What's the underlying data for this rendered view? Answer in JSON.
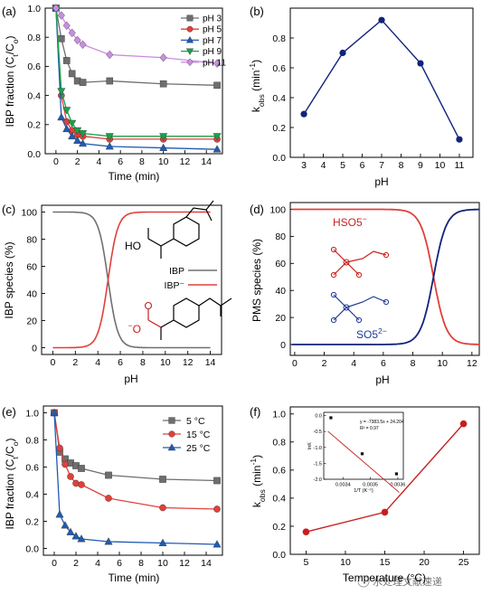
{
  "chart_data": [
    {
      "id": "a",
      "panel_label": "(a)",
      "type": "line",
      "xlabel": "Time (min)",
      "ylabel": "IBP fraction (C_t/C_o)",
      "xlim": [
        -1,
        15.5
      ],
      "ylim": [
        0,
        1.0
      ],
      "xticks": [
        0,
        2,
        4,
        6,
        8,
        10,
        12,
        14
      ],
      "yticks": [
        0.0,
        0.2,
        0.4,
        0.6,
        0.8,
        1.0
      ],
      "legend": "top-right",
      "x": [
        0,
        0.5,
        1,
        1.5,
        2,
        2.5,
        5,
        10,
        15
      ],
      "series": [
        {
          "name": "pH 3",
          "marker": "square",
          "color": "#6e6e6e",
          "values": [
            1.0,
            0.79,
            0.64,
            0.55,
            0.5,
            0.49,
            0.5,
            0.48,
            0.47
          ]
        },
        {
          "name": "pH 5",
          "marker": "circle",
          "color": "#e0403a",
          "values": [
            1.0,
            0.4,
            0.22,
            0.16,
            0.13,
            0.12,
            0.1,
            0.1,
            0.1
          ]
        },
        {
          "name": "pH 7",
          "marker": "triangle",
          "color": "#1f5bb3",
          "values": [
            1.0,
            0.25,
            0.17,
            0.12,
            0.09,
            0.07,
            0.05,
            0.04,
            0.03
          ]
        },
        {
          "name": "pH 9",
          "marker": "triangle-down",
          "color": "#16a34a",
          "values": [
            1.0,
            0.43,
            0.3,
            0.21,
            0.16,
            0.14,
            0.12,
            0.12,
            0.12
          ]
        },
        {
          "name": "pH 11",
          "marker": "diamond",
          "color": "#c98ee0",
          "values": [
            1.0,
            0.95,
            0.88,
            0.83,
            0.78,
            0.75,
            0.68,
            0.66,
            0.62
          ]
        }
      ]
    },
    {
      "id": "b",
      "panel_label": "(b)",
      "type": "line",
      "xlabel": "pH",
      "ylabel": "k_obs (min⁻¹)",
      "xlim": [
        2.3,
        11.7
      ],
      "ylim": [
        0,
        1.0
      ],
      "xticks": [
        3,
        4,
        5,
        6,
        7,
        8,
        9,
        10,
        11
      ],
      "yticks": [
        0.0,
        0.2,
        0.4,
        0.6,
        0.8
      ],
      "series": [
        {
          "color": "#12237a",
          "x": [
            3,
            5,
            7,
            9,
            11
          ],
          "values": [
            0.29,
            0.7,
            0.92,
            0.63,
            0.12
          ]
        }
      ]
    },
    {
      "id": "c",
      "panel_label": "(c)",
      "type": "line",
      "xlabel": "pH",
      "ylabel": "IBP species (%)",
      "xlim": [
        -1,
        15
      ],
      "ylim": [
        -5,
        105
      ],
      "xticks": [
        0,
        2,
        4,
        6,
        8,
        10,
        12,
        14
      ],
      "yticks": [
        0,
        20,
        40,
        60,
        80,
        100
      ],
      "pKa": 4.91,
      "legend": "center-right",
      "series": [
        {
          "name": "IBP",
          "color": "#707070",
          "form": "acid"
        },
        {
          "name": "IBP⁻",
          "color": "#e0403a",
          "form": "base"
        }
      ],
      "annotations": {
        "acid_group": "HO",
        "base_group": "O",
        "base_charge": "−"
      }
    },
    {
      "id": "d",
      "panel_label": "(d)",
      "type": "line",
      "xlabel": "pH",
      "ylabel": "PMS species (%)",
      "xlim": [
        -0.3,
        12.5
      ],
      "ylim": [
        -8,
        105
      ],
      "xticks": [
        0,
        2,
        4,
        6,
        8,
        10,
        12
      ],
      "yticks": [
        0,
        20,
        40,
        60,
        80,
        100
      ],
      "pKa": 9.4,
      "series": [
        {
          "name": "HSO₅⁻",
          "color": "#e0403a",
          "form": "acid"
        },
        {
          "name": "SO₅²⁻",
          "color": "#12237a",
          "form": "base"
        }
      ],
      "annotations": {
        "acid_label": "HSO5",
        "base_label": "SO5",
        "charge_minus": "−",
        "charge_2minus": "2−"
      }
    },
    {
      "id": "e",
      "panel_label": "(e)",
      "type": "line",
      "xlabel": "Time (min)",
      "ylabel": "IBP fraction (C_t/C_o)",
      "xlim": [
        -1,
        15.5
      ],
      "ylim": [
        -0.05,
        1.05
      ],
      "xticks": [
        0,
        2,
        4,
        6,
        8,
        10,
        12,
        14
      ],
      "yticks": [
        0.0,
        0.2,
        0.4,
        0.6,
        0.8,
        1.0
      ],
      "legend": "top-right",
      "x": [
        0,
        0.5,
        1,
        1.5,
        2,
        2.5,
        5,
        10,
        15
      ],
      "series": [
        {
          "name": "5  °C",
          "marker": "square",
          "color": "#6e6e6e",
          "values": [
            1.0,
            0.71,
            0.66,
            0.63,
            0.61,
            0.59,
            0.54,
            0.51,
            0.5
          ]
        },
        {
          "name": "15 °C",
          "marker": "circle",
          "color": "#e0403a",
          "values": [
            1.0,
            0.74,
            0.62,
            0.53,
            0.48,
            0.47,
            0.37,
            0.3,
            0.29
          ]
        },
        {
          "name": "25 °C",
          "marker": "triangle",
          "color": "#1f5bb3",
          "values": [
            1.0,
            0.25,
            0.17,
            0.12,
            0.09,
            0.07,
            0.05,
            0.04,
            0.03
          ]
        }
      ]
    },
    {
      "id": "f",
      "panel_label": "(f)",
      "type": "line",
      "xlabel": "Temperature (°C)",
      "ylabel": "k_obs (min⁻¹)",
      "xlim": [
        3,
        27
      ],
      "ylim": [
        0,
        1.05
      ],
      "xticks": [
        5,
        10,
        15,
        20,
        25
      ],
      "yticks": [
        0.0,
        0.2,
        0.4,
        0.6,
        0.8,
        1.0
      ],
      "series": [
        {
          "color": "#c81e1e",
          "x": [
            5,
            15,
            25
          ],
          "values": [
            0.16,
            0.3,
            0.93
          ]
        }
      ],
      "inset": {
        "xlabel": "1/T (K⁻¹)",
        "ylabel": "lnK",
        "xlim": [
          0.00333,
          0.00362
        ],
        "ylim": [
          -2.0,
          0.1
        ],
        "xticks": [
          0.0034,
          0.0035,
          0.0036
        ],
        "yticks": [
          0.0,
          -0.5,
          -1.0,
          -1.5,
          -2.0
        ],
        "points_x": [
          0.003356,
          0.00347,
          0.003595
        ],
        "points_y": [
          -0.07,
          -1.2,
          -1.83
        ],
        "fit_label": "y = -7383.5x + 24.204",
        "r2_label": "R² = 0.97"
      }
    }
  ],
  "watermark": "水处理文献速递"
}
